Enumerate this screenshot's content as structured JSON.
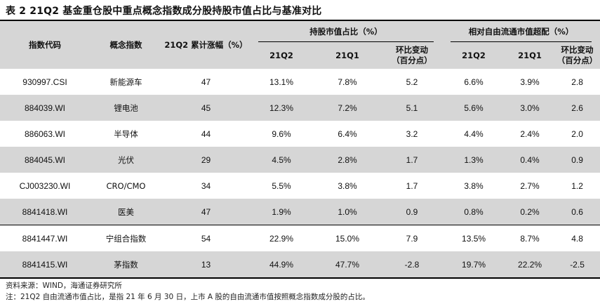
{
  "title": "表 2  21Q2 基金重仓股中重点概念指数成分股持股市值占比与基准对比",
  "headers": {
    "code": "指数代码",
    "concept": "概念指数",
    "rise": "21Q2 累计涨幅（%）",
    "holding_group": "持股市值占比（%）",
    "relative_group": "相对自由流通市值超配（%）",
    "q2": "21Q2",
    "q1": "21Q1",
    "change": "环比变动\n（百分点）"
  },
  "rows": [
    {
      "code": "930997.CSI",
      "concept": "新能源车",
      "rise": "47",
      "h_q2": "13.1%",
      "h_q1": "7.8%",
      "h_chg": "5.2",
      "r_q2": "6.6%",
      "r_q1": "3.9%",
      "r_chg": "2.8"
    },
    {
      "code": "884039.WI",
      "concept": "锂电池",
      "rise": "45",
      "h_q2": "12.3%",
      "h_q1": "7.2%",
      "h_chg": "5.1",
      "r_q2": "5.6%",
      "r_q1": "3.0%",
      "r_chg": "2.6"
    },
    {
      "code": "886063.WI",
      "concept": "半导体",
      "rise": "44",
      "h_q2": "9.6%",
      "h_q1": "6.4%",
      "h_chg": "3.2",
      "r_q2": "4.4%",
      "r_q1": "2.4%",
      "r_chg": "2.0"
    },
    {
      "code": "884045.WI",
      "concept": "光伏",
      "rise": "29",
      "h_q2": "4.5%",
      "h_q1": "2.8%",
      "h_chg": "1.7",
      "r_q2": "1.3%",
      "r_q1": "0.4%",
      "r_chg": "0.9"
    },
    {
      "code": "CJ003230.WI",
      "concept": "CRO/CMO",
      "rise": "34",
      "h_q2": "5.5%",
      "h_q1": "3.8%",
      "h_chg": "1.7",
      "r_q2": "3.8%",
      "r_q1": "2.7%",
      "r_chg": "1.2"
    },
    {
      "code": "8841418.WI",
      "concept": "医美",
      "rise": "47",
      "h_q2": "1.9%",
      "h_q1": "1.0%",
      "h_chg": "0.9",
      "r_q2": "0.8%",
      "r_q1": "0.2%",
      "r_chg": "0.6"
    },
    {
      "code": "8841447.WI",
      "concept": "宁组合指数",
      "rise": "54",
      "h_q2": "22.9%",
      "h_q1": "15.0%",
      "h_chg": "7.9",
      "r_q2": "13.5%",
      "r_q1": "8.7%",
      "r_chg": "4.8"
    },
    {
      "code": "8841415.WI",
      "concept": "茅指数",
      "rise": "13",
      "h_q2": "44.9%",
      "h_q1": "47.7%",
      "h_chg": "-2.8",
      "r_q2": "19.7%",
      "r_q1": "22.2%",
      "r_chg": "-2.5"
    }
  ],
  "footnotes": {
    "source": "资料来源：WIND，海通证券研究所",
    "note": "注：21Q2 自由流通市值占比，是指 21 年 6 月 30 日，上市 A 股的自由流通市值按照概念指数成分股的占比。"
  }
}
